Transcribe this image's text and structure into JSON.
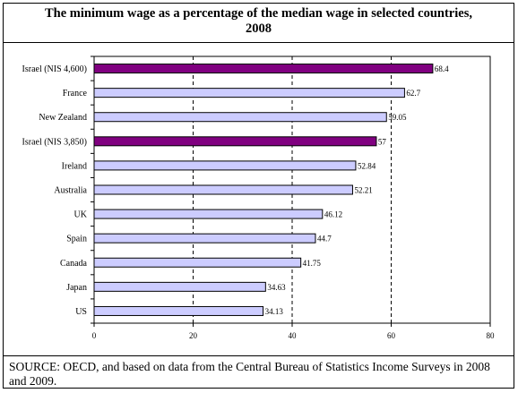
{
  "title_lines": [
    "The minimum wage as a percentage of the median wage in selected countries,",
    "2008"
  ],
  "source_text": "SOURCE: OECD, and based on data from the Central Bureau of Statistics Income Surveys in 2008 and 2009.",
  "colors": {
    "highlight_bar": "#800080",
    "normal_bar": "#ccccff",
    "bar_stroke": "#000000",
    "grid": "#000000"
  },
  "chart_data": {
    "type": "bar",
    "orientation": "horizontal",
    "title": "The minimum wage as a percentage of the median wage in selected countries, 2008",
    "categories": [
      "Israel (NIS 4,600)",
      "France",
      "New Zealand",
      "Israel (NIS 3,850)",
      "Ireland",
      "Australia",
      "UK",
      "Spain",
      "Canada",
      "Japan",
      "US"
    ],
    "values": [
      68.4,
      62.7,
      59.05,
      57,
      52.84,
      52.21,
      46.12,
      44.7,
      41.75,
      34.63,
      34.13
    ],
    "value_labels": [
      "68.4",
      "62.7",
      "59.05",
      "57",
      "52.84",
      "52.21",
      "46.12",
      "44.7",
      "41.75",
      "34.63",
      "34.13"
    ],
    "highlighted": [
      true,
      false,
      false,
      true,
      false,
      false,
      false,
      false,
      false,
      false,
      false
    ],
    "xlim": [
      0,
      80
    ],
    "xticks": [
      0,
      20,
      40,
      60,
      80
    ],
    "grid": "vertical dashed",
    "legend": "none"
  }
}
